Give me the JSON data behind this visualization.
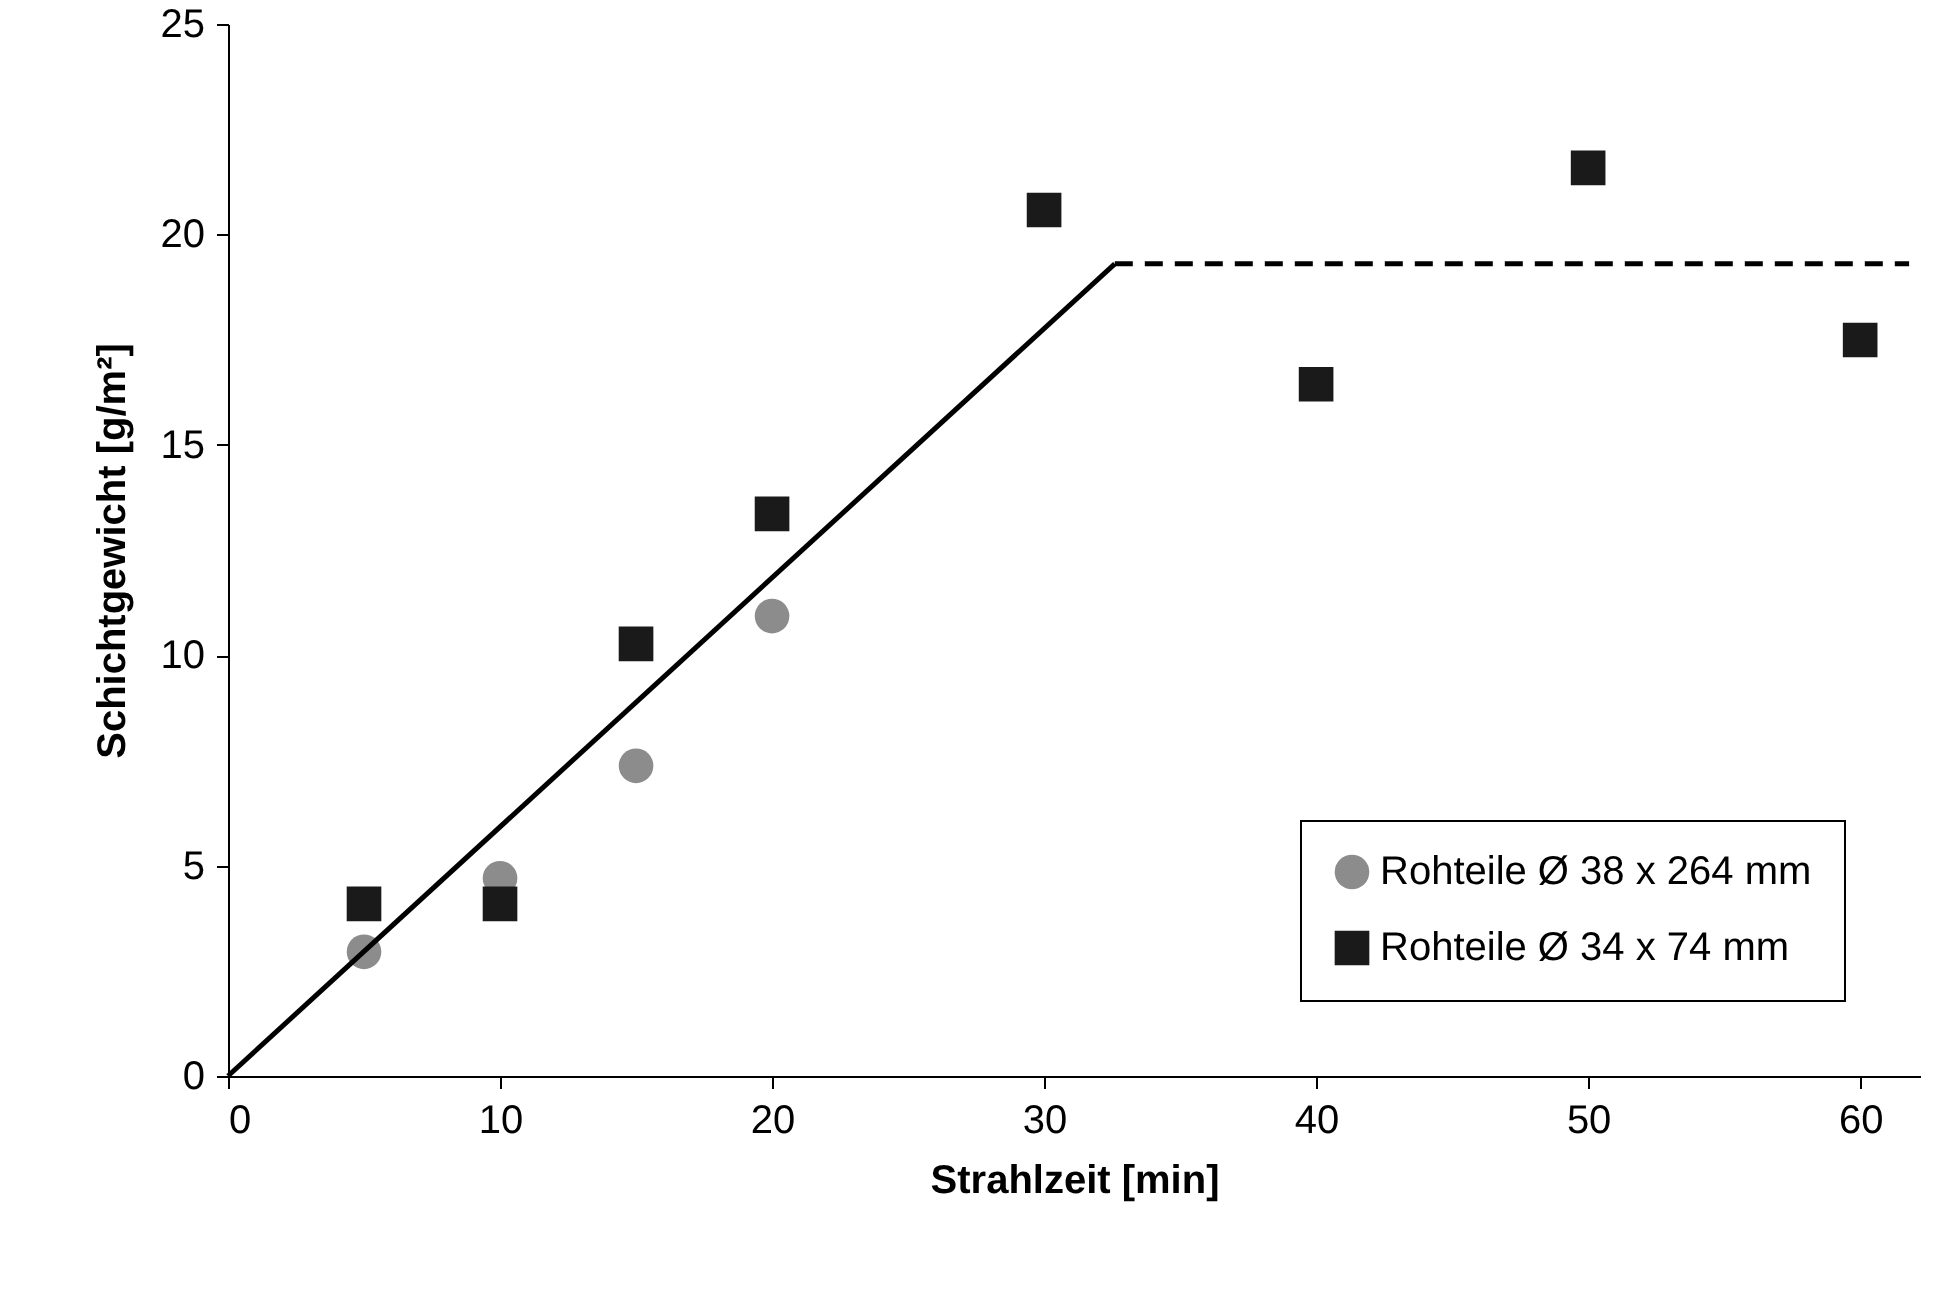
{
  "chart_data": {
    "type": "scatter",
    "xlabel": "Strahlzeit [min]",
    "ylabel": "Schichtgewicht [g/m²]",
    "xlim": [
      0,
      62.2
    ],
    "xticks": [
      0,
      10,
      20,
      30,
      40,
      50,
      60
    ],
    "ylim": [
      0,
      25
    ],
    "yticks": [
      0,
      5,
      10,
      15,
      20,
      25
    ],
    "grid": false,
    "legend": "bottom right",
    "series": [
      {
        "name": "Rohteile Ø 38 x 264 mm",
        "color": "#8c8c8c",
        "marker": "circle",
        "x": [
          5,
          10,
          15,
          20
        ],
        "values": [
          2.95,
          4.7,
          7.37,
          10.93
        ]
      },
      {
        "name": "Rohteile Ø 34 x 74 mm",
        "color": "#1a1a1a",
        "marker": "square",
        "x": [
          5,
          10,
          15,
          20,
          30,
          40,
          50,
          60
        ],
        "values": [
          4.09,
          4.09,
          10.27,
          13.36,
          20.58,
          16.44,
          21.58,
          17.49
        ]
      },
      {
        "type": "line",
        "color": "#000000",
        "line_style": "solid",
        "x": [
          0,
          32.6
        ],
        "values": [
          0,
          19.3
        ]
      },
      {
        "type": "line",
        "color": "#000000",
        "line_style": "dashed",
        "x": [
          32.6,
          61.8
        ],
        "values": [
          19.3,
          19.3
        ]
      }
    ]
  }
}
